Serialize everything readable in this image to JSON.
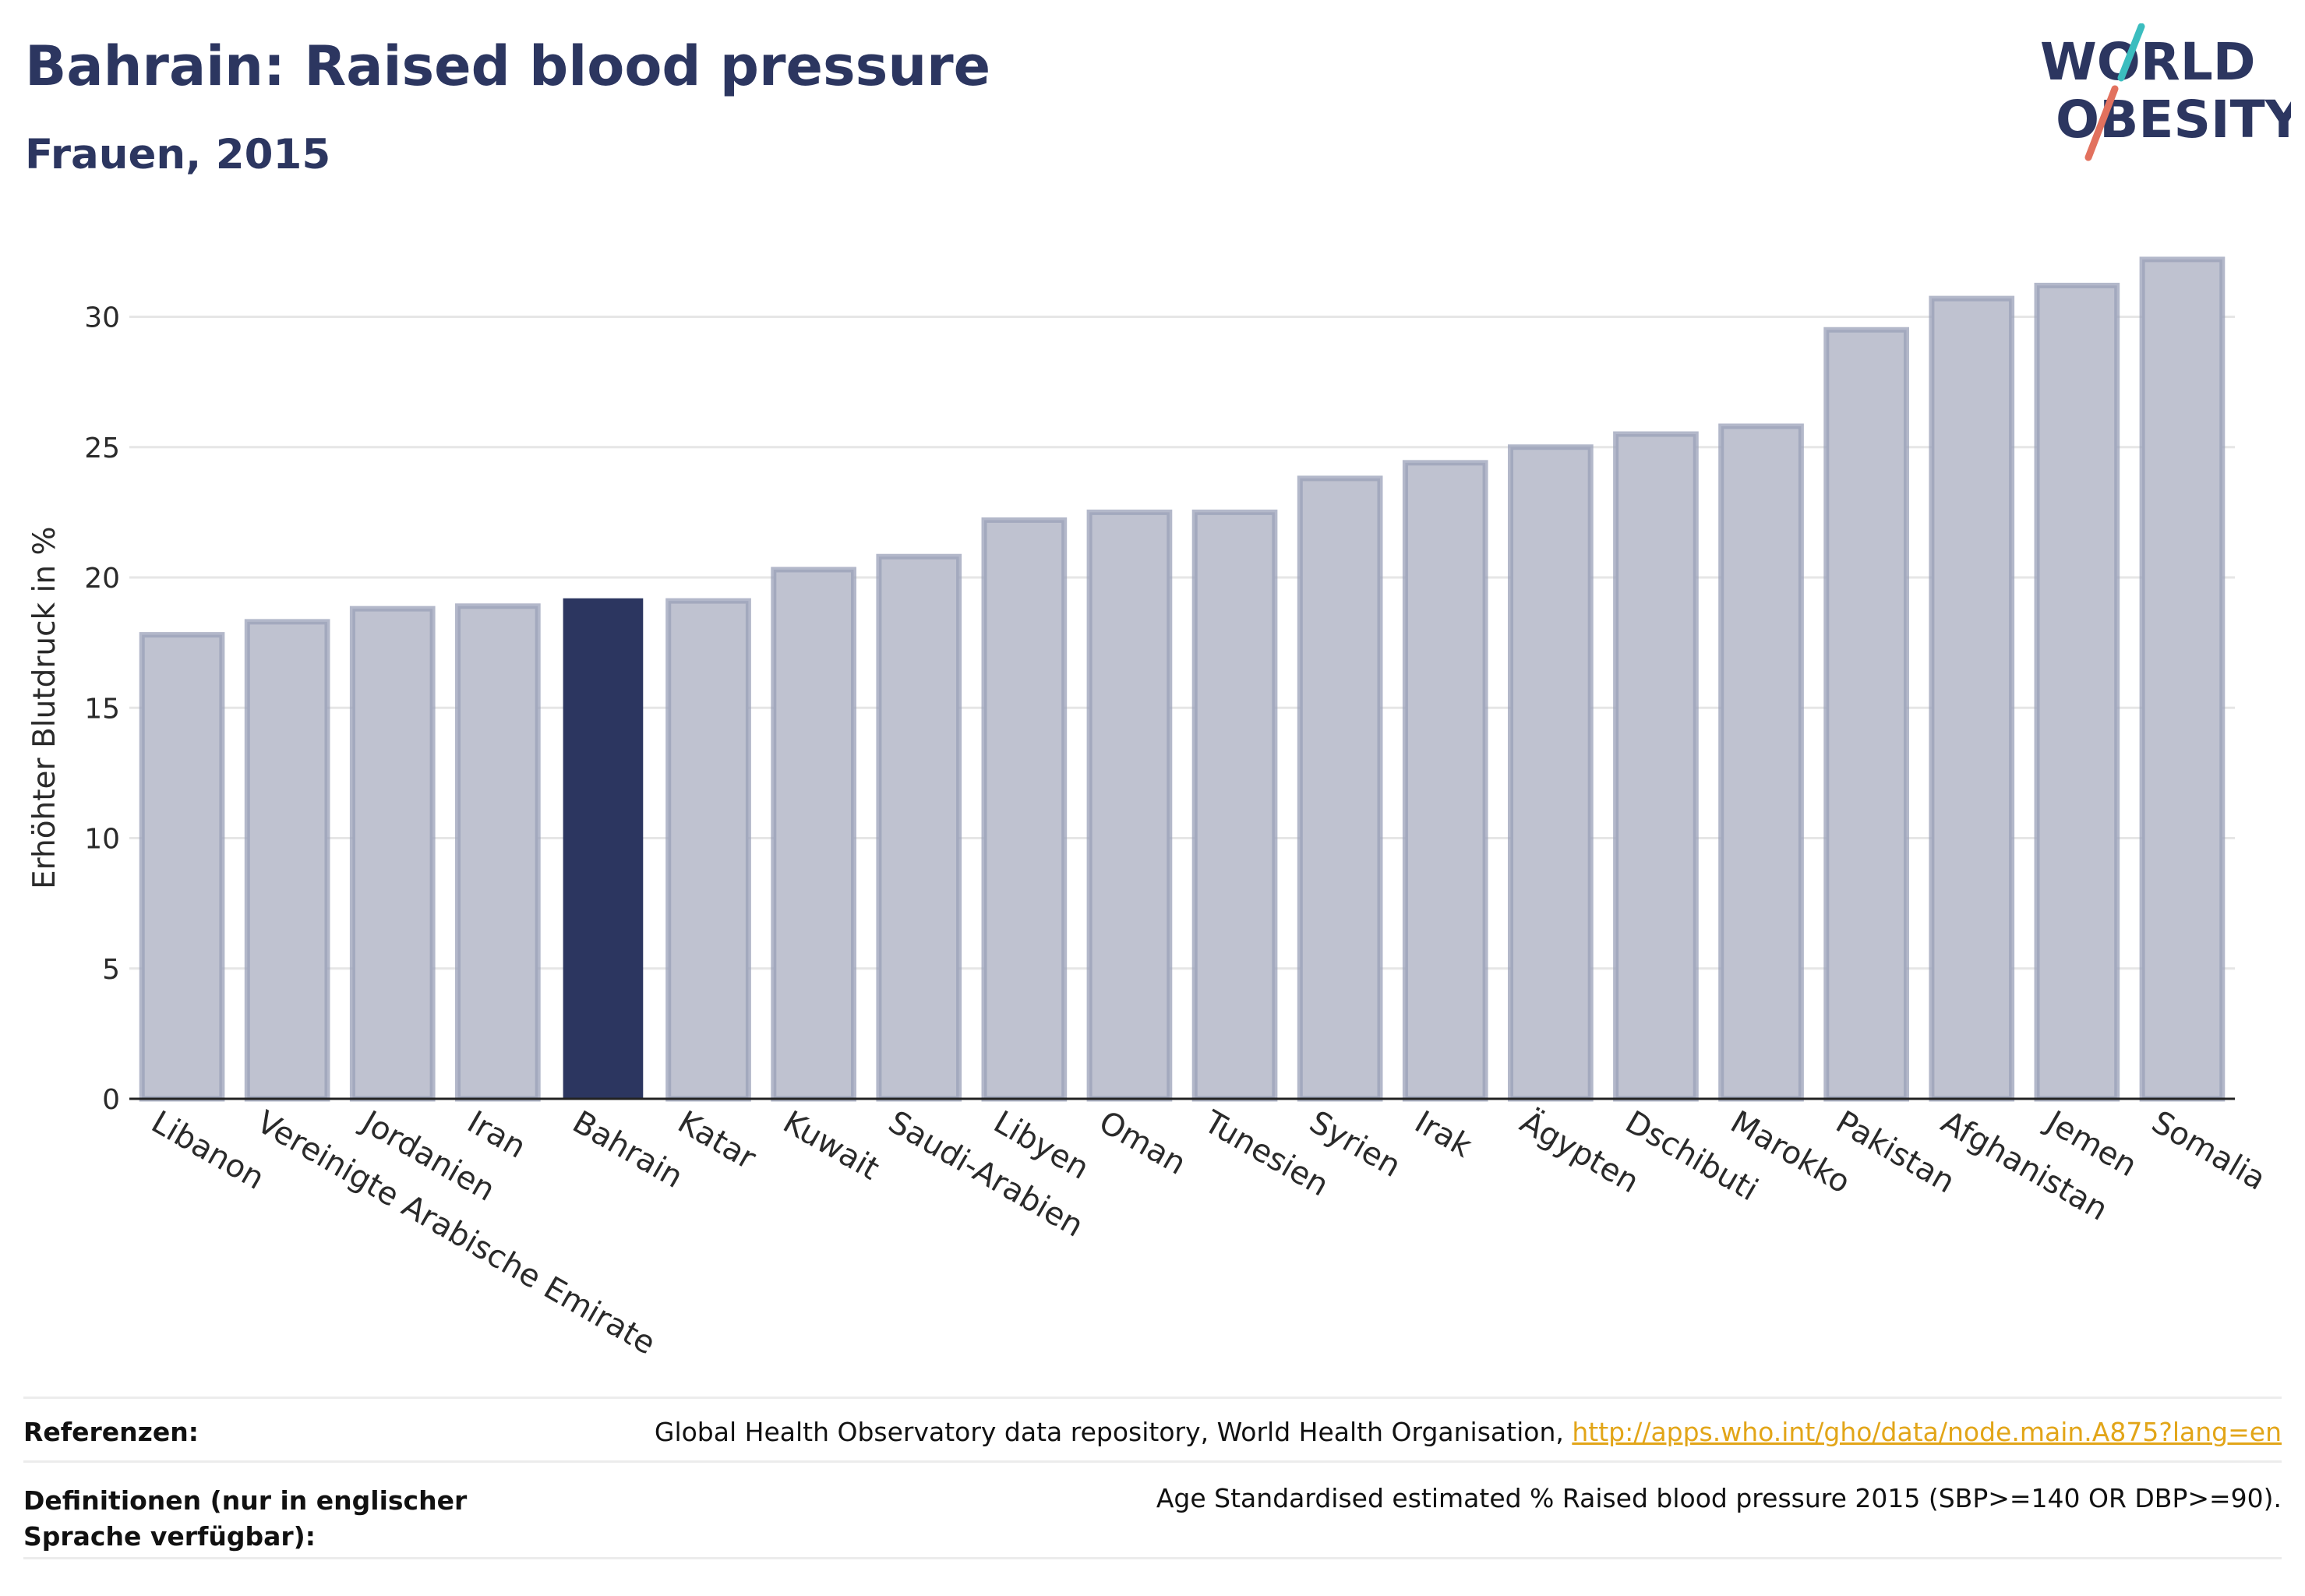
{
  "header": {
    "title": "Bahrain: Raised blood pressure",
    "subtitle": "Frauen, 2015"
  },
  "logo": {
    "line1": "WORLD",
    "line2": "OBESITY",
    "colors": {
      "text": "#2c3660",
      "slash_teal": "#3bbdbf",
      "slash_red": "#e2715e"
    }
  },
  "colors": {
    "bar_default": "#bfc2d0",
    "bar_default_stroke": "#9aa0b8",
    "bar_highlight": "#2c3660",
    "grid": "#e6e6e6",
    "axis": "#222222"
  },
  "chart_data": {
    "type": "bar",
    "ylabel": "Erhöhter Blutdruck in %",
    "xlabel": "",
    "ylim": [
      0,
      32.8
    ],
    "yticks": [
      0,
      5,
      10,
      15,
      20,
      25,
      30
    ],
    "grid": true,
    "highlight": "Bahrain",
    "categories": [
      "Libanon",
      "Vereinigte Arabische Emirate",
      "Jordanien",
      "Iran",
      "Bahrain",
      "Katar",
      "Kuwait",
      "Saudi-Arabien",
      "Libyen",
      "Oman",
      "Tunesien",
      "Syrien",
      "Irak",
      "Ägypten",
      "Dschibuti",
      "Marokko",
      "Pakistan",
      "Afghanistan",
      "Jemen",
      "Somalia"
    ],
    "values": [
      17.8,
      18.3,
      18.8,
      18.9,
      19.2,
      19.1,
      20.3,
      20.8,
      22.2,
      22.5,
      22.5,
      23.8,
      24.4,
      25.0,
      25.5,
      25.8,
      29.5,
      30.7,
      31.2,
      32.2
    ]
  },
  "footer": {
    "references_label": "Referenzen:",
    "references_text": "Global Health Observatory data repository, World Health Organisation, ",
    "references_link": "http://apps.who.int/gho/data/node.main.A875?lang=en",
    "definitions_label": "Definitionen (nur in englischer Sprache verfügbar):",
    "definitions_text": "Age Standardised estimated % Raised blood pressure 2015 (SBP>=140 OR DBP>=90)."
  }
}
